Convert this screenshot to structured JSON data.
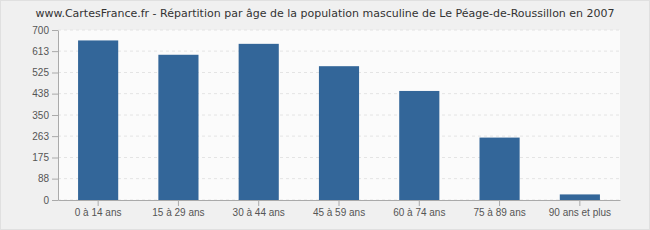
{
  "chart_data": {
    "type": "bar",
    "title": "www.CartesFrance.fr - Répartition par âge de la population masculine de Le Péage-de-Roussillon en 2007",
    "categories": [
      "0 à 14 ans",
      "15 à 29 ans",
      "30 à 44 ans",
      "45 à 59 ans",
      "60 à 74 ans",
      "75 à 89 ans",
      "90 ans et plus"
    ],
    "values": [
      657,
      598,
      643,
      551,
      449,
      257,
      23
    ],
    "color": "#336699",
    "ylim": [
      0,
      700
    ],
    "yticks": [
      0,
      88,
      175,
      263,
      350,
      438,
      525,
      613,
      700
    ],
    "grid": true
  }
}
